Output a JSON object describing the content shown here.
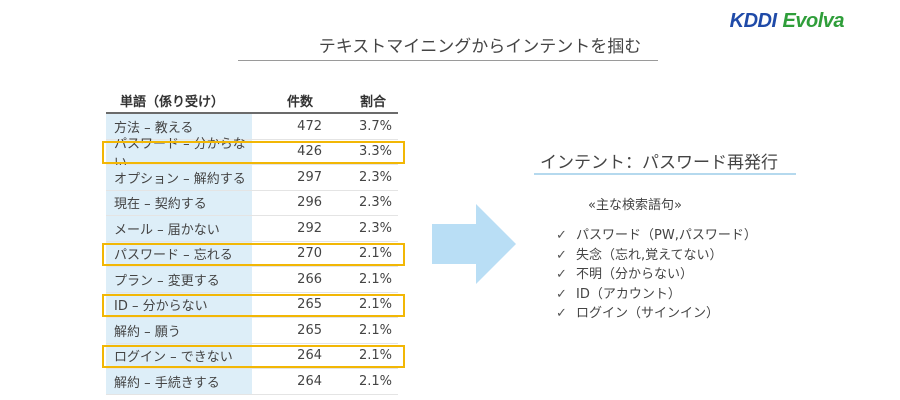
{
  "logo": {
    "kddi": "KDDI",
    "evolva": "Evolva"
  },
  "slide_title": "テキストマイニングからインテントを掴む",
  "table": {
    "headers": [
      "単語（係り受け）",
      "件数",
      "割合"
    ],
    "rows": [
      {
        "term": "方法 – 教える",
        "count": "472",
        "ratio": "3.7%",
        "highlighted": false
      },
      {
        "term": "パスワード – 分からない",
        "count": "426",
        "ratio": "3.3%",
        "highlighted": true
      },
      {
        "term": "オプション – 解約する",
        "count": "297",
        "ratio": "2.3%",
        "highlighted": false
      },
      {
        "term": "現在 – 契約する",
        "count": "296",
        "ratio": "2.3%",
        "highlighted": false
      },
      {
        "term": "メール – 届かない",
        "count": "292",
        "ratio": "2.3%",
        "highlighted": false
      },
      {
        "term": "パスワード – 忘れる",
        "count": "270",
        "ratio": "2.1%",
        "highlighted": true
      },
      {
        "term": "プラン – 変更する",
        "count": "266",
        "ratio": "2.1%",
        "highlighted": false
      },
      {
        "term": "ID – 分からない",
        "count": "265",
        "ratio": "2.1%",
        "highlighted": true
      },
      {
        "term": "解約 – 願う",
        "count": "265",
        "ratio": "2.1%",
        "highlighted": false
      },
      {
        "term": "ログイン – できない",
        "count": "264",
        "ratio": "2.1%",
        "highlighted": true
      },
      {
        "term": "解約 – 手続きする",
        "count": "264",
        "ratio": "2.1%",
        "highlighted": false
      }
    ]
  },
  "intent": {
    "title": "インテント：パスワード再発行",
    "keywords_heading": "«主な検索語句»",
    "check_glyph": "✓",
    "keywords": [
      "パスワード（PW,パスワード）",
      "失念（忘れ,覚えてない）",
      "不明（分からない）",
      "ID（アカウント）",
      "ログイン（サインイン）"
    ]
  },
  "colors": {
    "highlight_border": "#f2b705",
    "arrow": "#b9def5",
    "column_bg": "#ddeef8"
  }
}
